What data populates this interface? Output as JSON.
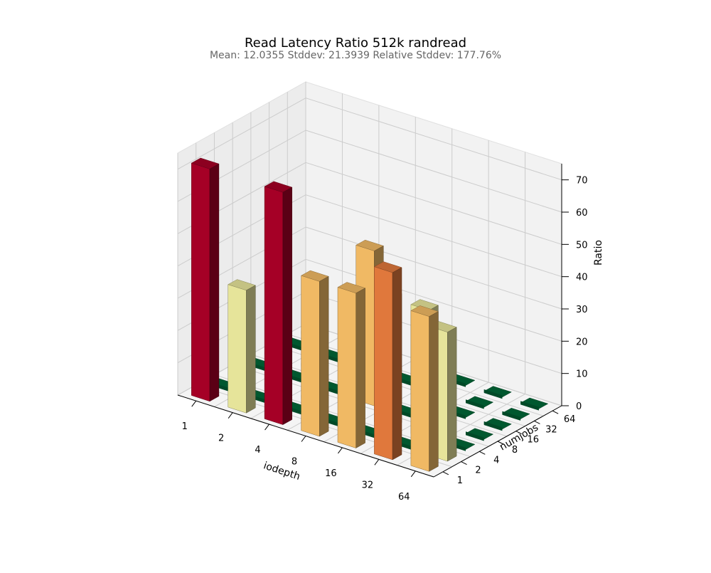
{
  "chart_data": {
    "type": "bar3d",
    "title": "Read Latency Ratio 512k randread",
    "subtitle": "Mean: 12.0355   Stddev: 21.3939   Relative Stddev: 177.76%",
    "xlabel": "iodepth",
    "ylabel": "numjobs",
    "zlabel": "Ratio",
    "x_categories": [
      "1",
      "2",
      "4",
      "8",
      "16",
      "32",
      "64"
    ],
    "y_categories": [
      "1",
      "2",
      "4",
      "8",
      "16",
      "32",
      "64"
    ],
    "zlim": [
      0,
      75
    ],
    "z_ticks": [
      0,
      10,
      20,
      30,
      40,
      50,
      60,
      70
    ],
    "grid": true,
    "values": [
      [
        72,
        0.5,
        0.5,
        0.5,
        0.5,
        0.5,
        0.5
      ],
      [
        38,
        0.5,
        0.5,
        0.5,
        0.5,
        0.5,
        0.5
      ],
      [
        72,
        0.5,
        0.5,
        0.5,
        0.5,
        0.5,
        0.5
      ],
      [
        48,
        0.5,
        0.5,
        48,
        0.5,
        0.5,
        0.5
      ],
      [
        48,
        0.5,
        40,
        0.5,
        0.5,
        0.5,
        0.5
      ],
      [
        58,
        0.5,
        40,
        0.5,
        0.5,
        0.5,
        0.5
      ],
      [
        48,
        40,
        0.5,
        0.5,
        0.5,
        0.5,
        0.5
      ]
    ],
    "colors": {
      "pane": "#f2f2f2",
      "grid": "#cccccc",
      "low": "#006837",
      "low_alt": "#1a9850",
      "mid_light": "#e6e49a",
      "mid": "#f0b964",
      "high": "#e0783c",
      "top_red": "#a50026"
    }
  }
}
